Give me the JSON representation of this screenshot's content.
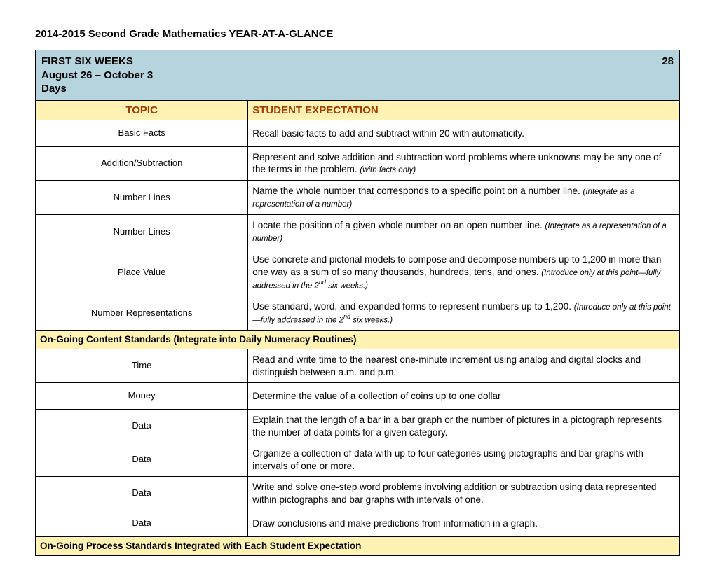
{
  "colors": {
    "period_header_bg": "#b6d4de",
    "yellow_bg": "#fff2b3",
    "header_text": "#a53a00",
    "border": "#000000",
    "page_bg": "#ffffff"
  },
  "typography": {
    "base_font": "Arial",
    "title_size_pt": 11,
    "body_size_pt": 10,
    "note_size_pt": 8
  },
  "layout": {
    "topic_col_width_pct": 33,
    "expectation_col_width_pct": 67
  },
  "doc_title": "2014-2015 Second Grade Mathematics YEAR-AT-A-GLANCE",
  "period": {
    "name": "FIRST SIX WEEKS",
    "dates": "August 26 – October 3",
    "days_number": "28",
    "days_label": "Days"
  },
  "column_headers": {
    "topic": "TOPIC",
    "expectation": "STUDENT EXPECTATION"
  },
  "main_rows": [
    {
      "topic": "Basic Facts",
      "exp": "Recall basic facts to add and subtract within 20 with automaticity.",
      "note": ""
    },
    {
      "topic": "Addition/Subtraction",
      "exp": "Represent and solve addition and subtraction word problems where unknowns may be any one of the terms in the problem. ",
      "note": "(with facts only)"
    },
    {
      "topic": "Number Lines",
      "exp": "Name the whole number that corresponds to a specific point on a number line. ",
      "note": "(Integrate as a representation of a number)"
    },
    {
      "topic": "Number Lines",
      "exp": "Locate the position of a given whole number on an open number line. ",
      "note": "(Integrate as a representation of a number)"
    },
    {
      "topic": "Place Value",
      "exp": "Use concrete and pictorial models to compose and decompose numbers up to 1,200 in more than one way as a sum of so many thousands, hundreds, tens, and ones. ",
      "note": "(Introduce only at this point—fully addressed in the 2",
      "sup": "nd",
      "note2": " six weeks.)"
    },
    {
      "topic": "Number Representations",
      "exp": "Use standard, word, and expanded forms to represent numbers up to 1,200. ",
      "note": "(Introduce only at this point—fully addressed in the 2",
      "sup": "nd",
      "note2": " six weeks.)"
    }
  ],
  "ongoing_content_header": "On-Going Content Standards (Integrate into Daily Numeracy Routines)",
  "ongoing_rows": [
    {
      "topic": "Time",
      "exp": "Read and write time to the nearest one-minute increment using analog and digital clocks and distinguish between a.m. and p.m."
    },
    {
      "topic": "Money",
      "exp": "Determine the value of a collection of coins up to one dollar"
    },
    {
      "topic": "Data",
      "exp": "Explain that the length of a bar in a bar graph or the number of pictures in a pictograph represents the number of data points for a given category."
    },
    {
      "topic": "Data",
      "exp": "Organize a collection of data with up to four categories using pictographs and bar graphs with intervals of one or more."
    },
    {
      "topic": "Data",
      "exp": "Write and solve one-step word problems involving addition or subtraction using data represented within pictographs and bar graphs with intervals of one."
    },
    {
      "topic": "Data",
      "exp": "Draw conclusions and make predictions from information in a graph."
    }
  ],
  "process_header": "On-Going Process Standards Integrated with Each Student Expectation"
}
